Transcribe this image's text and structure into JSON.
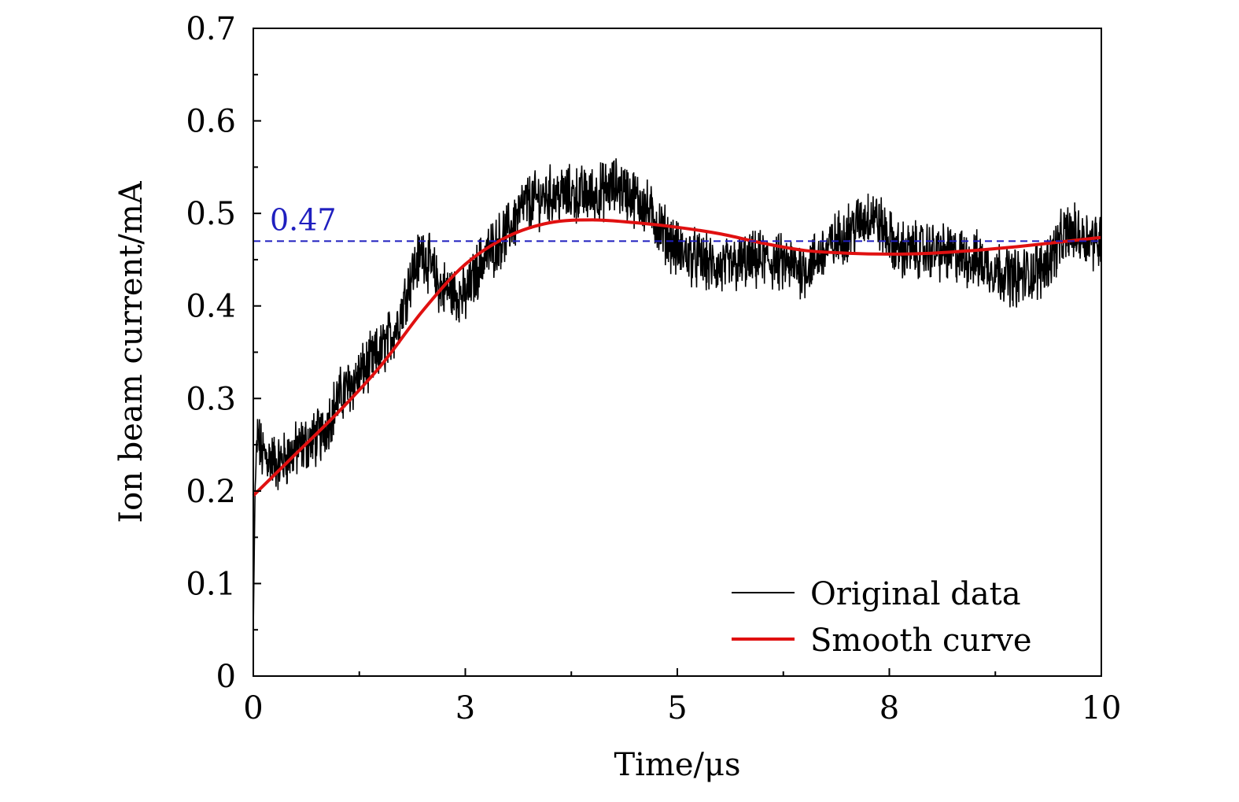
{
  "chart_data": {
    "type": "line",
    "title": "",
    "xlabel": "Time/μs",
    "ylabel": "Ion beam current/mA",
    "xlim": [
      0,
      10
    ],
    "ylim": [
      0,
      0.7
    ],
    "x_ticks": [
      0,
      2.5,
      5,
      7.5,
      10
    ],
    "x_tick_labels": [
      "0",
      "3",
      "5",
      "8",
      "10"
    ],
    "y_ticks": [
      0,
      0.1,
      0.2,
      0.3,
      0.4,
      0.5,
      0.6,
      0.7
    ],
    "y_tick_labels": [
      "0",
      "0.1",
      "0.2",
      "0.3",
      "0.4",
      "0.5",
      "0.6",
      "0.7"
    ],
    "grid": false,
    "legend_position": "bottom-right",
    "reference_line": {
      "value": 0.47,
      "label": "0.47",
      "color": "#1f1fbf",
      "style": "dashed"
    },
    "series": [
      {
        "name": "Original data",
        "color": "#000000",
        "noise_amplitude": 0.035,
        "x": [
          0.0,
          0.02,
          0.05,
          0.1,
          0.3,
          0.6,
          0.8,
          1.0,
          1.3,
          1.5,
          1.7,
          1.85,
          2.0,
          2.2,
          2.5,
          2.7,
          3.0,
          3.2,
          3.5,
          4.0,
          4.3,
          4.6,
          5.0,
          5.5,
          6.0,
          6.5,
          7.0,
          7.3,
          7.6,
          8.0,
          8.5,
          9.0,
          9.3,
          9.6,
          10.0
        ],
        "y": [
          0.05,
          0.2,
          0.26,
          0.24,
          0.23,
          0.25,
          0.26,
          0.3,
          0.33,
          0.35,
          0.38,
          0.43,
          0.46,
          0.42,
          0.41,
          0.45,
          0.48,
          0.51,
          0.52,
          0.52,
          0.53,
          0.51,
          0.46,
          0.44,
          0.45,
          0.44,
          0.48,
          0.5,
          0.46,
          0.46,
          0.45,
          0.43,
          0.44,
          0.48,
          0.47
        ]
      },
      {
        "name": "Smooth curve",
        "color": "#e01010",
        "x": [
          0.0,
          0.5,
          1.0,
          1.5,
          2.0,
          2.5,
          3.0,
          3.5,
          4.0,
          4.5,
          5.0,
          5.5,
          6.0,
          6.5,
          7.0,
          7.5,
          8.0,
          8.5,
          9.0,
          9.5,
          10.0
        ],
        "y": [
          0.195,
          0.24,
          0.285,
          0.335,
          0.395,
          0.445,
          0.475,
          0.49,
          0.493,
          0.49,
          0.485,
          0.478,
          0.468,
          0.46,
          0.457,
          0.456,
          0.457,
          0.46,
          0.464,
          0.469,
          0.474
        ]
      }
    ]
  }
}
